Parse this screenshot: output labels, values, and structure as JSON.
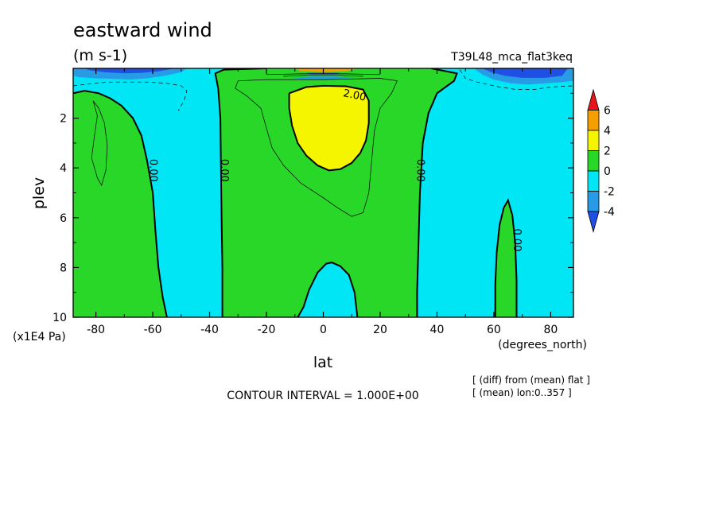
{
  "chart_data": {
    "type": "heatmap",
    "title": "eastward wind",
    "units": "(m s-1)",
    "experiment": "T39L48_mca_flat3keq",
    "xlabel": "lat",
    "x_unit_label": "(degrees_north)",
    "ylabel": "plev",
    "y_unit_label": "(x1E4 Pa)",
    "xlim": [
      -88,
      88
    ],
    "ylim": [
      10,
      0
    ],
    "x_ticks": [
      -80,
      -60,
      -40,
      -20,
      0,
      20,
      40,
      60,
      80
    ],
    "x_tick_labels": [
      "-80",
      "-60",
      "-40",
      "-20",
      "0",
      "20",
      "40",
      "60",
      "80"
    ],
    "y_ticks": [
      2,
      4,
      6,
      8,
      10
    ],
    "y_tick_labels": [
      "2",
      "4",
      "6",
      "8",
      "10"
    ],
    "contour_interval_text": "CONTOUR INTERVAL = 1.000E+00",
    "notes": [
      "[ (diff) from (mean) flat ]",
      "[ (mean) lon:0..357 ]"
    ],
    "contour_labels": [
      {
        "text": "0.00",
        "lat": -60,
        "plev": 4.1
      },
      {
        "text": "0.00",
        "lat": -35,
        "plev": 4.1
      },
      {
        "text": "0.00",
        "lat": 34,
        "plev": 4.1
      },
      {
        "text": "0.00",
        "lat": 68,
        "plev": 6.9
      },
      {
        "text": "2.00",
        "lat": 11,
        "plev": 1.1
      }
    ],
    "regions": [
      {
        "level": "0 to 2",
        "polygon": [
          [
            -88,
            1.0
          ],
          [
            -84,
            0.9
          ],
          [
            -79,
            1.0
          ],
          [
            -75,
            1.2
          ],
          [
            -71,
            1.5
          ],
          [
            -67,
            2.0
          ],
          [
            -64,
            2.7
          ],
          [
            -62,
            3.7
          ],
          [
            -60,
            5.0
          ],
          [
            -59,
            6.6
          ],
          [
            -58,
            8.0
          ],
          [
            -56.5,
            9.2
          ],
          [
            -55,
            10
          ],
          [
            -88,
            10
          ]
        ]
      },
      {
        "level": "0 to 2",
        "polygon": [
          [
            -38,
            0.2
          ],
          [
            -35,
            0.05
          ],
          [
            -20,
            0.0
          ],
          [
            20,
            0.0
          ],
          [
            38,
            0.0
          ],
          [
            47,
            0.2
          ],
          [
            46,
            0.5
          ],
          [
            40,
            1.0
          ],
          [
            37,
            1.8
          ],
          [
            35,
            3.0
          ],
          [
            34,
            5.0
          ],
          [
            33.5,
            7.0
          ],
          [
            33,
            9.0
          ],
          [
            33,
            10
          ],
          [
            12,
            10
          ],
          [
            11,
            9.0
          ],
          [
            9,
            8.3
          ],
          [
            6,
            7.95
          ],
          [
            3,
            7.8
          ],
          [
            1,
            7.85
          ],
          [
            -2,
            8.2
          ],
          [
            -5,
            8.9
          ],
          [
            -7,
            9.6
          ],
          [
            -9,
            10
          ],
          [
            -35.5,
            10
          ],
          [
            -35.5,
            8.0
          ],
          [
            -35.8,
            6.0
          ],
          [
            -36,
            4.0
          ],
          [
            -36.2,
            2.0
          ],
          [
            -37,
            0.8
          ]
        ]
      },
      {
        "level": "0 to 2",
        "polygon": [
          [
            60.5,
            10
          ],
          [
            60.5,
            8.7
          ],
          [
            61,
            7.4
          ],
          [
            62,
            6.3
          ],
          [
            63.5,
            5.6
          ],
          [
            65,
            5.3
          ],
          [
            66.5,
            5.9
          ],
          [
            67.5,
            7.0
          ],
          [
            68,
            8.5
          ],
          [
            68,
            10
          ]
        ]
      },
      {
        "level": "2 to 4",
        "polygon": [
          [
            -12,
            1.0
          ],
          [
            -6,
            0.75
          ],
          [
            0,
            0.7
          ],
          [
            8,
            0.72
          ],
          [
            14,
            0.85
          ],
          [
            16,
            1.3
          ],
          [
            16,
            2.2
          ],
          [
            15,
            2.9
          ],
          [
            13,
            3.4
          ],
          [
            10,
            3.8
          ],
          [
            6,
            4.05
          ],
          [
            2,
            4.1
          ],
          [
            -2,
            3.9
          ],
          [
            -6,
            3.5
          ],
          [
            -9,
            3.0
          ],
          [
            -11,
            2.3
          ],
          [
            -12,
            1.6
          ]
        ]
      },
      {
        "level": "2 to 4",
        "polygon": [
          [
            -8,
            0.0
          ],
          [
            10,
            0.0
          ],
          [
            6,
            0.06
          ],
          [
            0,
            0.08
          ],
          [
            -6,
            0.06
          ]
        ]
      },
      {
        "level": "-2 to -4",
        "polygon": [
          [
            -88,
            0.0
          ],
          [
            -48,
            0.0
          ],
          [
            -50,
            0.15
          ],
          [
            -56,
            0.3
          ],
          [
            -62,
            0.4
          ],
          [
            -68,
            0.45
          ],
          [
            -74,
            0.42
          ],
          [
            -80,
            0.4
          ],
          [
            -86,
            0.35
          ],
          [
            -88,
            0.3
          ]
        ]
      },
      {
        "level": "-2 to -4",
        "polygon": [
          [
            -12,
            0.38
          ],
          [
            -4,
            0.33
          ],
          [
            4,
            0.33
          ],
          [
            12,
            0.38
          ],
          [
            4,
            0.45
          ],
          [
            -4,
            0.45
          ]
        ]
      },
      {
        "level": "-2 to -4",
        "polygon": [
          [
            53,
            0.0
          ],
          [
            88,
            0.0
          ],
          [
            88,
            0.5
          ],
          [
            84,
            0.55
          ],
          [
            78,
            0.6
          ],
          [
            72,
            0.65
          ],
          [
            66,
            0.6
          ],
          [
            60,
            0.45
          ],
          [
            56,
            0.25
          ]
        ]
      },
      {
        "level": "-4 to -6",
        "polygon": [
          [
            -84,
            0.0
          ],
          [
            -52,
            0.0
          ],
          [
            -58,
            0.12
          ],
          [
            -64,
            0.18
          ],
          [
            -70,
            0.2
          ],
          [
            -77,
            0.15
          ],
          [
            -82,
            0.08
          ]
        ]
      },
      {
        "level": "-4 to -6",
        "polygon": [
          [
            56,
            0.0
          ],
          [
            86,
            0.0
          ],
          [
            84,
            0.3
          ],
          [
            78,
            0.38
          ],
          [
            70,
            0.38
          ],
          [
            64,
            0.3
          ],
          [
            59,
            0.15
          ]
        ]
      },
      {
        "level": "4 to 6",
        "polygon": [
          [
            -10,
            0.0
          ],
          [
            12,
            0.0
          ],
          [
            8,
            0.12
          ],
          [
            0,
            0.15
          ],
          [
            -8,
            0.12
          ]
        ]
      },
      {
        "level": "-4 to -6",
        "polygon": [
          [
            -6,
            0.18
          ],
          [
            6,
            0.18
          ],
          [
            4,
            0.24
          ],
          [
            -4,
            0.24
          ]
        ]
      }
    ],
    "thin_contours": [
      {
        "level": 1,
        "points": [
          [
            -81,
            1.3
          ],
          [
            -79.5,
            1.9
          ],
          [
            -80.5,
            2.7
          ],
          [
            -81.5,
            3.6
          ],
          [
            -79.5,
            4.4
          ],
          [
            -78,
            4.7
          ],
          [
            -76.5,
            4.1
          ],
          [
            -76,
            3.1
          ],
          [
            -77,
            2.2
          ],
          [
            -79,
            1.6
          ],
          [
            -81,
            1.3
          ]
        ]
      },
      {
        "level": 1,
        "points": [
          [
            -30,
            0.5
          ],
          [
            -20,
            0.45
          ],
          [
            0,
            0.45
          ],
          [
            20,
            0.4
          ],
          [
            26,
            0.5
          ],
          [
            24,
            1.0
          ],
          [
            20,
            1.6
          ],
          [
            18,
            2.5
          ],
          [
            17,
            3.7
          ],
          [
            16,
            5.0
          ],
          [
            14,
            5.8
          ],
          [
            10,
            5.95
          ],
          [
            5,
            5.6
          ],
          [
            0,
            5.2
          ],
          [
            -8,
            4.6
          ],
          [
            -14,
            3.9
          ],
          [
            -18,
            3.2
          ],
          [
            -20,
            2.4
          ],
          [
            -22,
            1.6
          ],
          [
            -27,
            1.1
          ],
          [
            -31,
            0.8
          ],
          [
            -30,
            0.5
          ]
        ]
      },
      {
        "level": -1,
        "points": [
          [
            -88,
            0.7
          ],
          [
            -76,
            0.55
          ],
          [
            -62,
            0.55
          ],
          [
            -55,
            0.6
          ],
          [
            -50,
            0.7
          ],
          [
            -48,
            0.9
          ],
          [
            -49,
            1.3
          ],
          [
            -51,
            1.7
          ]
        ]
      },
      {
        "level": -1,
        "points": [
          [
            48,
            0.05
          ],
          [
            50,
            0.4
          ],
          [
            54,
            0.55
          ],
          [
            58,
            0.65
          ],
          [
            62,
            0.75
          ],
          [
            68,
            0.85
          ],
          [
            74,
            0.85
          ],
          [
            80,
            0.75
          ],
          [
            88,
            0.7
          ]
        ]
      },
      {
        "level": 1,
        "points": [
          [
            -20,
            0.25
          ],
          [
            -8,
            0.22
          ],
          [
            0,
            0.22
          ],
          [
            8,
            0.22
          ],
          [
            20,
            0.25
          ]
        ]
      },
      {
        "level": 1,
        "points": [
          [
            -14,
            0.32
          ],
          [
            -6,
            0.28
          ],
          [
            6,
            0.28
          ],
          [
            14,
            0.32
          ]
        ]
      }
    ],
    "zero_contours": [
      {
        "points": [
          [
            -88,
            1.0
          ],
          [
            -84,
            0.9
          ],
          [
            -79,
            1.0
          ],
          [
            -75,
            1.2
          ],
          [
            -71,
            1.5
          ],
          [
            -67,
            2.0
          ],
          [
            -64,
            2.7
          ],
          [
            -62,
            3.7
          ],
          [
            -60,
            5.0
          ],
          [
            -59,
            6.6
          ],
          [
            -58,
            8.0
          ],
          [
            -56.5,
            9.2
          ],
          [
            -55,
            10
          ]
        ]
      },
      {
        "points": [
          [
            -35.5,
            10
          ],
          [
            -35.5,
            8.0
          ],
          [
            -35.8,
            6.0
          ],
          [
            -36,
            4.0
          ],
          [
            -36.2,
            2.0
          ],
          [
            -37,
            0.8
          ],
          [
            -38,
            0.2
          ],
          [
            -35,
            0.05
          ],
          [
            -20,
            0.0
          ]
        ]
      },
      {
        "points": [
          [
            38,
            0.0
          ],
          [
            47,
            0.2
          ],
          [
            46,
            0.5
          ],
          [
            40,
            1.0
          ],
          [
            37,
            1.8
          ],
          [
            35,
            3.0
          ],
          [
            34,
            5.0
          ],
          [
            33.5,
            7.0
          ],
          [
            33,
            9.0
          ],
          [
            33,
            10
          ]
        ]
      },
      {
        "points": [
          [
            12,
            10
          ],
          [
            11,
            9.0
          ],
          [
            9,
            8.3
          ],
          [
            6,
            7.95
          ],
          [
            3,
            7.8
          ],
          [
            1,
            7.85
          ],
          [
            -2,
            8.2
          ],
          [
            -5,
            8.9
          ],
          [
            -7,
            9.6
          ],
          [
            -9,
            10
          ]
        ]
      },
      {
        "points": [
          [
            60.5,
            10
          ],
          [
            60.5,
            8.7
          ],
          [
            61,
            7.4
          ],
          [
            62,
            6.3
          ],
          [
            63.5,
            5.6
          ],
          [
            65,
            5.3
          ],
          [
            66.5,
            5.9
          ],
          [
            67.5,
            7.0
          ],
          [
            68,
            8.5
          ],
          [
            68,
            10
          ]
        ]
      },
      {
        "points": [
          [
            -12,
            1.0
          ],
          [
            -6,
            0.75
          ],
          [
            0,
            0.7
          ],
          [
            8,
            0.72
          ],
          [
            14,
            0.85
          ],
          [
            16,
            1.3
          ],
          [
            16,
            2.2
          ],
          [
            15,
            2.9
          ],
          [
            13,
            3.4
          ],
          [
            10,
            3.8
          ],
          [
            6,
            4.05
          ],
          [
            2,
            4.1
          ],
          [
            -2,
            3.9
          ],
          [
            -6,
            3.5
          ],
          [
            -9,
            3.0
          ],
          [
            -11,
            2.3
          ],
          [
            -12,
            1.6
          ],
          [
            -12,
            1.0
          ]
        ]
      }
    ],
    "background_level": "-2 to 0",
    "colorbar": {
      "tick_labels": [
        "6",
        "4",
        "2",
        "0",
        "-2",
        "-4"
      ],
      "levels": [
        {
          "range": ">6",
          "color": "#e8141c"
        },
        {
          "range": "4 to 6",
          "color": "#f5a000"
        },
        {
          "range": "2 to 4",
          "color": "#f5f500"
        },
        {
          "range": "0 to 2",
          "color": "#28d728"
        },
        {
          "range": "-2 to 0",
          "color": "#00e6f5"
        },
        {
          "range": "-4 to -2",
          "color": "#289be6"
        },
        {
          "range": "<-4",
          "color": "#1e50e6"
        }
      ]
    },
    "level_colors": {
      "-2 to 0": "#00e6f5",
      "0 to 2": "#28d728",
      "2 to 4": "#f5f500",
      "4 to 6": "#f5a000",
      "-2 to -4": "#289be6",
      "-4 to -6": "#1e50e6"
    }
  }
}
